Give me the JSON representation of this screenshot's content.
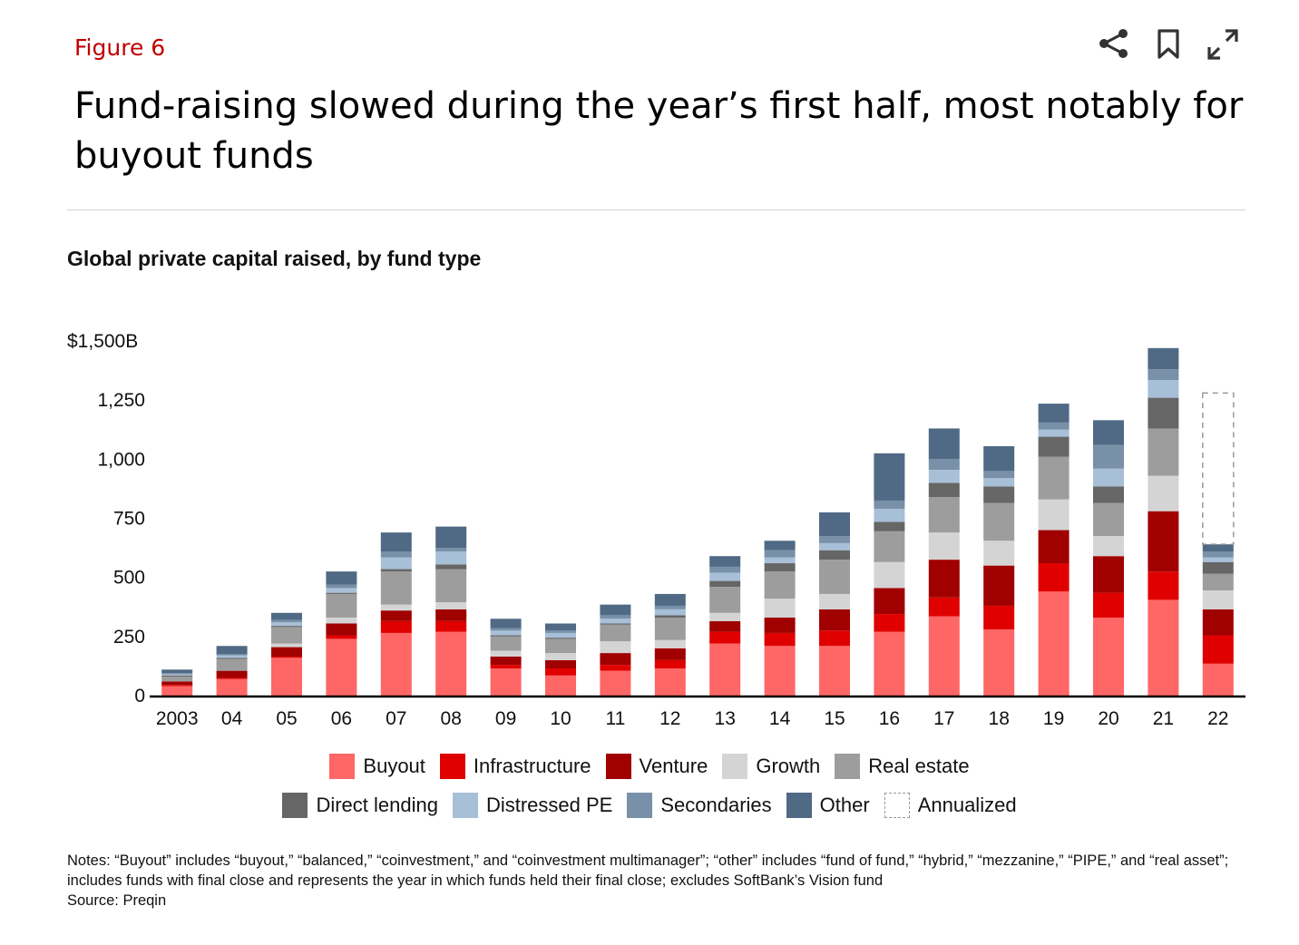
{
  "figure_label": "Figure 6",
  "headline": "Fund-raising slowed during the year’s first half, most notably for buyout funds",
  "toolbar": {
    "share_icon": "share-icon",
    "bookmark_icon": "bookmark-icon",
    "expand_icon": "expand-icon"
  },
  "colors": {
    "Buyout": "#ff6666",
    "Infrastructure": "#e00000",
    "Venture": "#a00000",
    "Growth": "#d4d4d4",
    "Real estate": "#9d9d9d",
    "Direct lending": "#666666",
    "Distressed PE": "#a8bfd8",
    "Secondaries": "#7890a8",
    "Other": "#506a85",
    "Annualized": "#999999"
  },
  "legend": {
    "row1": [
      "Buyout",
      "Infrastructure",
      "Venture",
      "Growth",
      "Real estate"
    ],
    "row2": [
      "Direct lending",
      "Distressed PE",
      "Secondaries",
      "Other",
      "Annualized"
    ]
  },
  "notes": {
    "text": "Notes: “Buyout” includes “buyout,” “balanced,” “coinvestment,” and “coinvestment multimanager”; “other” includes “fund of fund,” “hybrid,” “mezzanine,” “PIPE,” and “real asset”; includes funds with final close and represents the year in which funds held their final close; excludes SoftBank’s Vision fund",
    "source": "Source: Preqin"
  },
  "chart_data": {
    "type": "bar",
    "stacked": true,
    "title": "Global private capital raised, by fund type",
    "xlabel": "",
    "ylabel": "",
    "ylim": [
      0,
      1500
    ],
    "y_ticks": [
      0,
      250,
      500,
      750,
      1000,
      1250,
      1500
    ],
    "y_tick_labels": [
      "0",
      "250",
      "500",
      "750",
      "1,000",
      "1,250",
      "$1,500B"
    ],
    "categories": [
      "2003",
      "04",
      "05",
      "06",
      "07",
      "08",
      "09",
      "10",
      "11",
      "12",
      "13",
      "14",
      "15",
      "16",
      "17",
      "18",
      "19",
      "20",
      "21",
      "22"
    ],
    "series": [
      {
        "name": "Buyout",
        "values": [
          40,
          70,
          160,
          240,
          265,
          270,
          115,
          85,
          105,
          115,
          220,
          210,
          210,
          270,
          335,
          280,
          440,
          330,
          405,
          135
        ]
      },
      {
        "name": "Infrastructure",
        "values": [
          5,
          5,
          5,
          15,
          50,
          45,
          15,
          30,
          25,
          35,
          50,
          55,
          65,
          75,
          80,
          100,
          120,
          105,
          120,
          120
        ]
      },
      {
        "name": "Venture",
        "values": [
          15,
          30,
          40,
          50,
          45,
          50,
          35,
          35,
          50,
          50,
          45,
          65,
          90,
          110,
          160,
          170,
          140,
          155,
          255,
          110
        ]
      },
      {
        "name": "Growth",
        "values": [
          0,
          0,
          15,
          25,
          25,
          30,
          25,
          30,
          50,
          35,
          35,
          80,
          65,
          110,
          115,
          105,
          130,
          85,
          150,
          80
        ]
      },
      {
        "name": "Real estate",
        "values": [
          20,
          50,
          70,
          100,
          140,
          140,
          60,
          60,
          70,
          95,
          110,
          115,
          145,
          130,
          150,
          160,
          180,
          140,
          200,
          70
        ]
      },
      {
        "name": "Direct lending",
        "values": [
          5,
          5,
          5,
          5,
          10,
          20,
          5,
          5,
          5,
          10,
          25,
          35,
          40,
          40,
          60,
          70,
          85,
          70,
          130,
          50
        ]
      },
      {
        "name": "Distressed PE",
        "values": [
          5,
          10,
          15,
          20,
          50,
          55,
          20,
          20,
          20,
          25,
          35,
          25,
          30,
          55,
          55,
          35,
          30,
          75,
          75,
          20
        ]
      },
      {
        "name": "Secondaries",
        "values": [
          5,
          5,
          10,
          15,
          25,
          15,
          10,
          10,
          15,
          15,
          25,
          30,
          30,
          35,
          45,
          30,
          30,
          100,
          45,
          25
        ]
      },
      {
        "name": "Other",
        "values": [
          15,
          35,
          30,
          55,
          80,
          90,
          40,
          30,
          45,
          50,
          45,
          40,
          100,
          200,
          130,
          105,
          80,
          105,
          90,
          30
        ]
      },
      {
        "name": "Annualized",
        "values": [
          0,
          0,
          0,
          0,
          0,
          0,
          0,
          0,
          0,
          0,
          0,
          0,
          0,
          0,
          0,
          0,
          0,
          0,
          0,
          640
        ]
      }
    ]
  }
}
